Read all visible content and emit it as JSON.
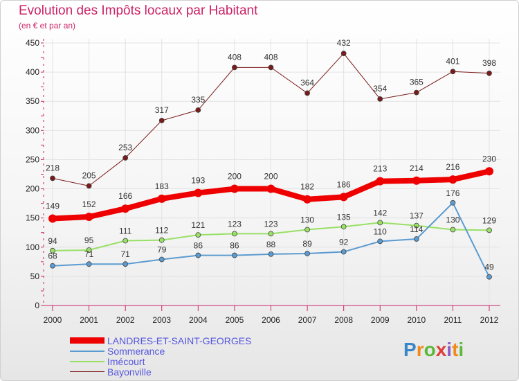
{
  "title": "Evolution des Impôts locaux par Habitant",
  "subtitle": "(en € et par an)",
  "brand": "Proxiti",
  "chart_data": {
    "type": "line",
    "title": "Evolution des Impôts locaux par Habitant",
    "subtitle": "(en € et par an)",
    "xlabel": "",
    "ylabel": "",
    "ylim": [
      0,
      450
    ],
    "yticks": [
      0,
      50,
      100,
      150,
      200,
      250,
      300,
      350,
      400,
      450
    ],
    "grid": true,
    "legend_position": "bottom-left",
    "categories": [
      "2000",
      "2001",
      "2002",
      "2003",
      "2004",
      "2005",
      "2006",
      "2007",
      "2008",
      "2009",
      "2010",
      "2011",
      "2012"
    ],
    "series": [
      {
        "name": "Bayonville",
        "color": "#7a1a1a",
        "width": 1,
        "values": [
          218,
          205,
          253,
          317,
          335,
          408,
          408,
          364,
          432,
          354,
          365,
          401,
          398
        ]
      },
      {
        "name": "Imécourt",
        "color": "#99e066",
        "width": 2,
        "values": [
          94,
          95,
          111,
          112,
          121,
          123,
          123,
          130,
          135,
          142,
          137,
          130,
          129
        ]
      },
      {
        "name": "Sommerance",
        "color": "#5b9bd0",
        "width": 2,
        "values": [
          68,
          71,
          71,
          79,
          86,
          86,
          88,
          89,
          92,
          110,
          114,
          176,
          49
        ]
      },
      {
        "name": "LANDRES-ET-SAINT-GEORGES",
        "color": "#ee0000",
        "width": 8,
        "values": [
          149,
          152,
          166,
          183,
          193,
          200,
          200,
          182,
          186,
          213,
          214,
          216,
          230
        ]
      }
    ]
  },
  "legend": [
    {
      "name": "LANDRES-ET-SAINT-GEORGES",
      "color": "#ee0000",
      "label_color": "#5555dd"
    },
    {
      "name": "Sommerance",
      "color": "#5b9bd0",
      "label_color": "#5555dd"
    },
    {
      "name": "Imécourt",
      "color": "#99e066",
      "label_color": "#5555dd"
    },
    {
      "name": "Bayonville",
      "color": "#7a1a1a",
      "label_color": "#5555dd"
    }
  ]
}
